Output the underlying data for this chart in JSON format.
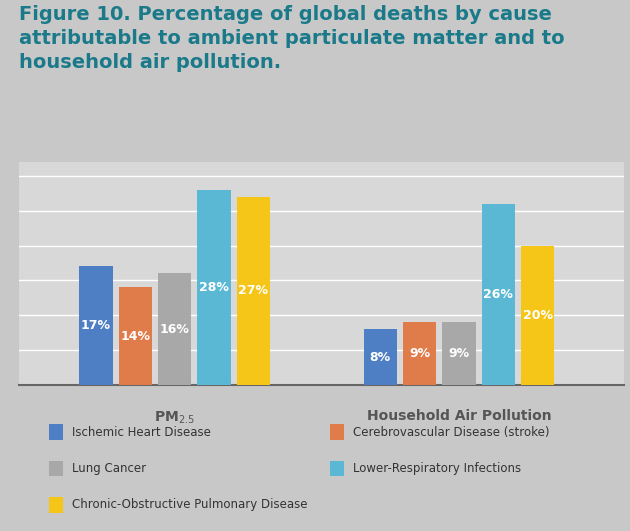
{
  "title_line1": "Figure 10. Percentage of global deaths by cause",
  "title_line2": "attributable to ambient particulate matter and to",
  "title_line3": "household air pollution.",
  "group_labels": [
    "PM$_{2.5}$",
    "Household Air Pollution"
  ],
  "categories": [
    "Ischemic Heart Disease",
    "Cerebrovascular Disease (stroke)",
    "Lung Cancer",
    "Lower-Respiratory Infections",
    "Chronic-Obstructive Pulmonary Disease"
  ],
  "colors": [
    "#4E7FC4",
    "#E07B4A",
    "#A8A8A8",
    "#5BB8D4",
    "#F5C518"
  ],
  "values_pm25": [
    17,
    14,
    16,
    28,
    27
  ],
  "values_hap": [
    8,
    9,
    9,
    26,
    20
  ],
  "background_color": "#C8C8C8",
  "chart_bg_grad_top": "#E0E0E0",
  "chart_bg_grad_bot": "#D0D0D0",
  "title_color": "#1A7A8A",
  "axis_label_color": "#555555",
  "legend_bg": "#F0F0F0",
  "ylim": [
    0,
    32
  ],
  "bar_label_fontsize": 9,
  "title_fontsize": 14,
  "group_label_fontsize": 10,
  "legend_fontsize": 8.5
}
